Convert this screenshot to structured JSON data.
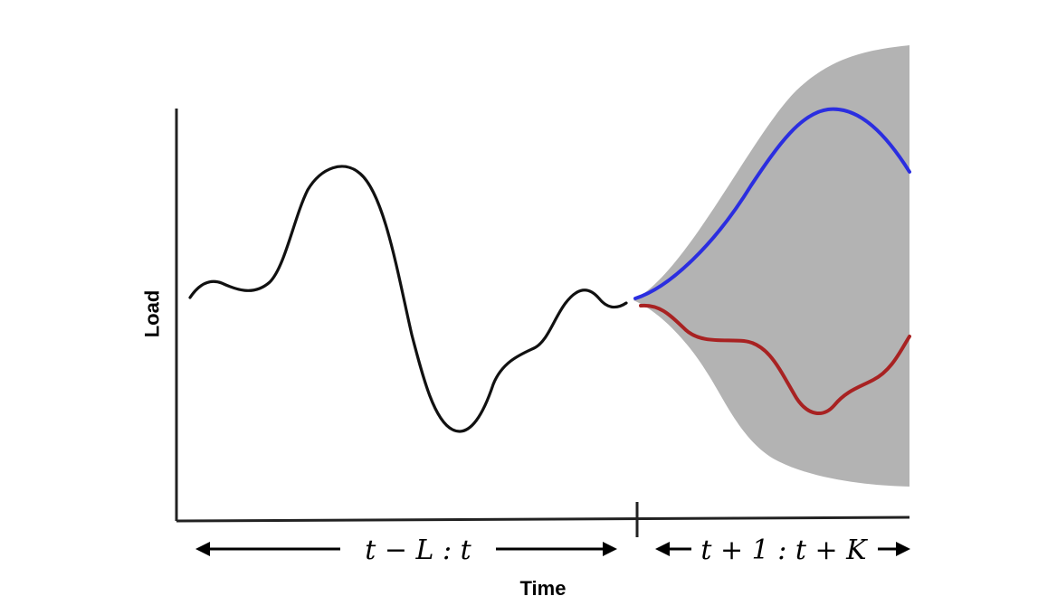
{
  "axes": {
    "x_label": "Time",
    "y_label": "Load"
  },
  "ranges": {
    "history_label": "t − L : t",
    "forecast_label": "t + 1 : t + K"
  },
  "colors": {
    "history_line": "#111111",
    "forecast_upper": "#2b2ee0",
    "forecast_lower": "#a82222",
    "uncertainty_band": "#b3b3b3",
    "axis": "#222222"
  }
}
